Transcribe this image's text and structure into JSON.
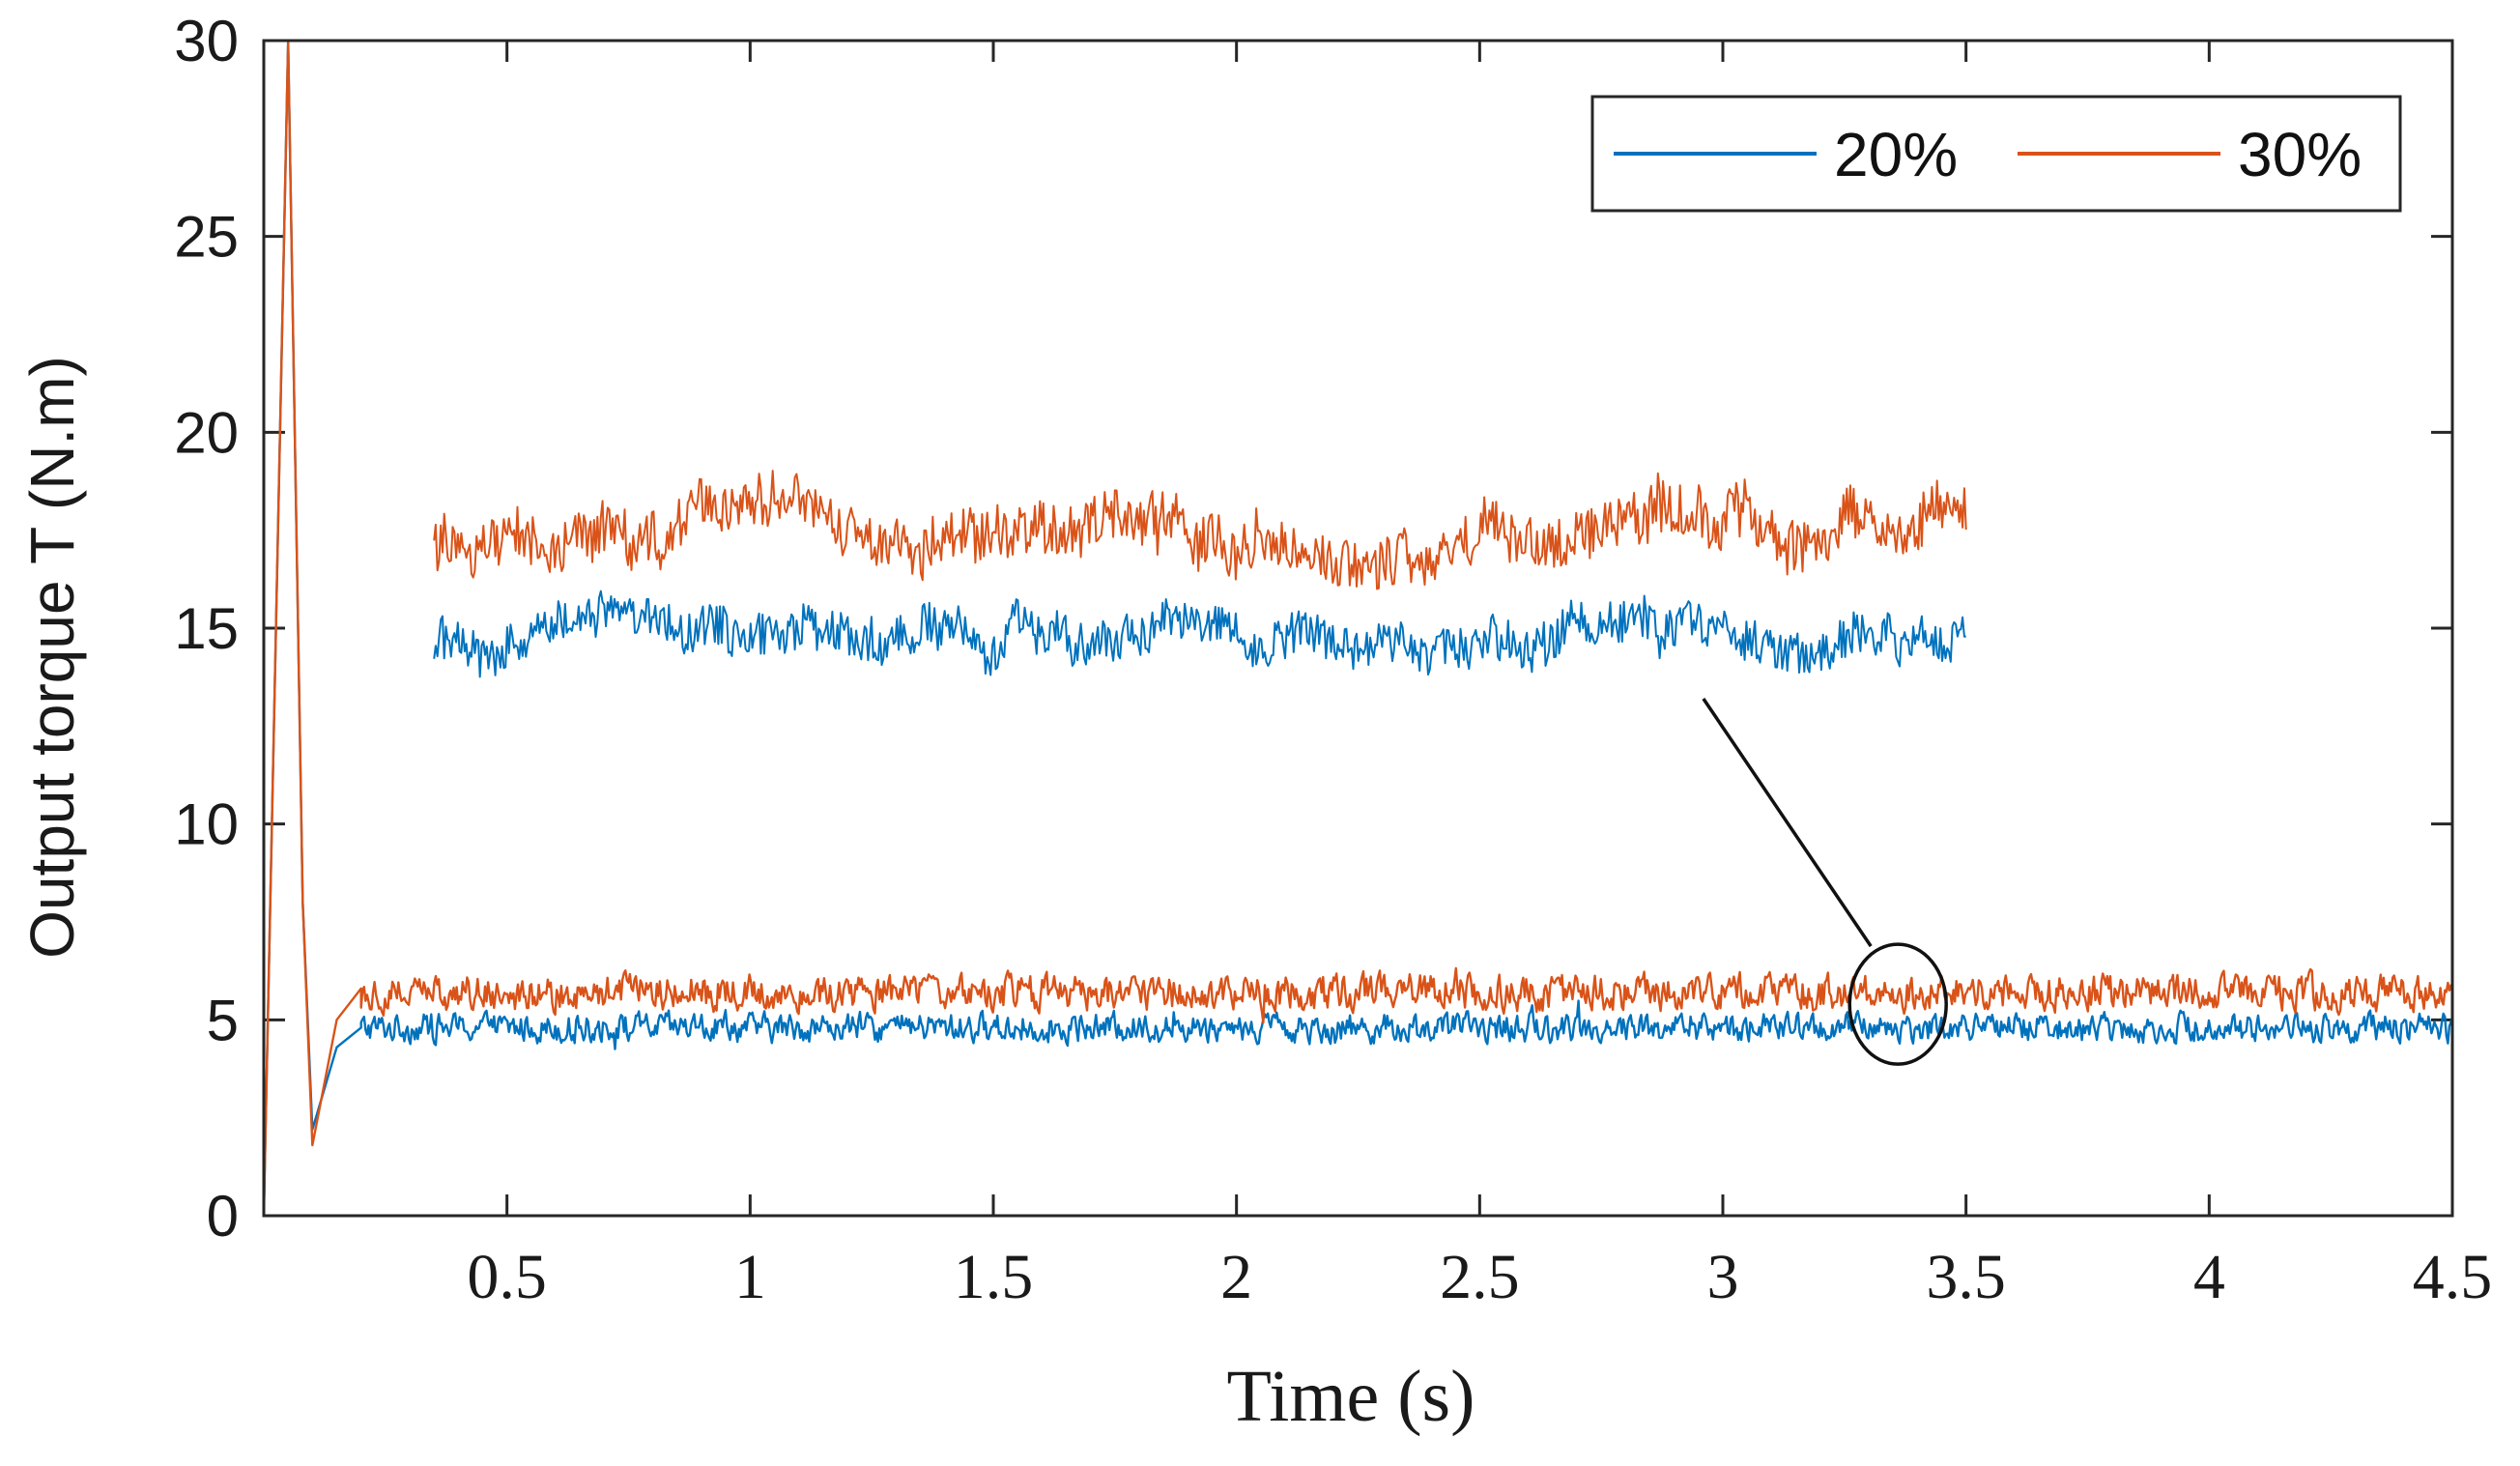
{
  "chart_data": {
    "type": "line",
    "title": "",
    "xlabel": "Time (s)",
    "ylabel": "Output torque  T (N.m)",
    "xlim": [
      0,
      4.5
    ],
    "ylim": [
      0,
      30
    ],
    "xticks": [
      0.5,
      1,
      1.5,
      2,
      2.5,
      3,
      3.5,
      4,
      4.5
    ],
    "xtick_labels": [
      "0.5",
      "1",
      "1.5",
      "2",
      "2.5",
      "3",
      "3.5",
      "4",
      "4.5"
    ],
    "yticks": [
      0,
      5,
      10,
      15,
      20,
      25,
      30
    ],
    "ytick_labels": [
      "0",
      "5",
      "10",
      "15",
      "20",
      "25",
      "30"
    ],
    "grid": false,
    "legend_position": "top-right",
    "series": [
      {
        "name": "20%",
        "color": "#0072BD",
        "description": "main trace: overshoot at start, dip to ~2 near t=0.1 s, then steady about 4.8 N.m with ripple",
        "key_points": {
          "x": [
            0,
            0.05,
            0.08,
            0.1,
            0.15,
            0.2,
            4.5
          ],
          "y": [
            0,
            30,
            8,
            2.2,
            4.3,
            4.8,
            4.8
          ]
        },
        "steady_mean": 4.8,
        "ripple": 0.4
      },
      {
        "name": "30%",
        "color": "#D95319",
        "description": "main trace: overshoot at start, dip to ~2 near t=0.1 s, then steady about 5.7 N.m with ripple",
        "key_points": {
          "x": [
            0,
            0.05,
            0.08,
            0.1,
            0.15,
            0.2,
            4.5
          ],
          "y": [
            0,
            30,
            8,
            1.8,
            5.0,
            5.8,
            5.7
          ]
        },
        "steady_mean": 5.7,
        "ripple": 0.5
      }
    ],
    "zoom_inset": {
      "x_range": [
        0.35,
        3.5
      ],
      "series": [
        {
          "name": "20%",
          "color": "#0072BD",
          "mean": 14.8,
          "range": [
            13.5,
            16.8
          ]
        },
        {
          "name": "30%",
          "color": "#D95319",
          "mean": 17.4,
          "range": [
            16.0,
            20.0
          ]
        }
      ],
      "callout_target": {
        "x": 3.36,
        "y": 5.4
      }
    }
  }
}
